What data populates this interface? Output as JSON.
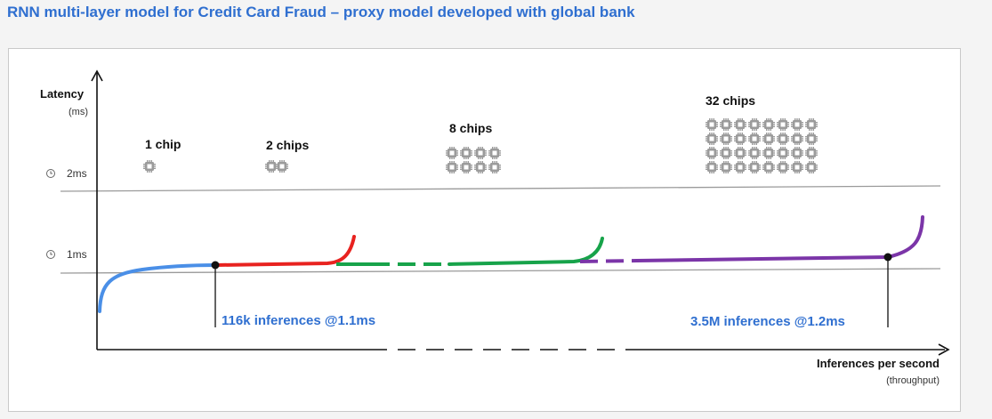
{
  "title": "RNN multi-layer model for Credit Card Fraud – proxy model developed with global bank",
  "chart_data": {
    "type": "line",
    "ylabel": "Latency",
    "yunit": "(ms)",
    "xlabel": "Inferences per second",
    "xunit": "(throughput)",
    "reference_lines": [
      {
        "label": "2ms",
        "value": 2,
        "icon": "clock-icon"
      },
      {
        "label": "1ms",
        "value": 1,
        "icon": "clock-icon"
      }
    ],
    "series": [
      {
        "name": "1 chip",
        "color": "#4a8fe7",
        "chip_count": 1
      },
      {
        "name": "2 chips",
        "color": "#e8221f",
        "chip_count": 2
      },
      {
        "name": "8 chips",
        "color": "#17a34a",
        "chip_count": 8
      },
      {
        "name": "32 chips",
        "color": "#7b35a8",
        "chip_count": 32
      }
    ],
    "annotations": [
      {
        "text": "116k inferences @1.1ms",
        "throughput": "116k",
        "latency_ms": 1.1
      },
      {
        "text": "3.5M inferences @1.2ms",
        "throughput": "3.5M",
        "latency_ms": 1.2
      }
    ],
    "colors": {
      "annotation": "#2f6fd0",
      "axis": "#111111",
      "refline": "#9a9a9a",
      "chip": "#9b9b9b"
    }
  }
}
